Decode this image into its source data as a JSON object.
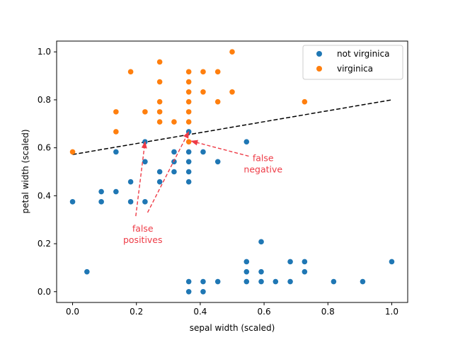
{
  "chart_data": {
    "type": "scatter",
    "xlabel": "sepal width (scaled)",
    "ylabel": "petal width (scaled)",
    "xlim": [
      -0.05,
      1.05
    ],
    "ylim": [
      -0.045,
      1.045
    ],
    "xticks": [
      "0.0",
      "0.2",
      "0.4",
      "0.6",
      "0.8",
      "1.0"
    ],
    "yticks": [
      "0.0",
      "0.2",
      "0.4",
      "0.6",
      "0.8",
      "1.0"
    ],
    "grid": false,
    "legend": {
      "location": "top-right",
      "entries": [
        "not virginica",
        "virginica"
      ]
    },
    "colors": {
      "not_virginica": "#1f77b4",
      "virginica": "#ff7f0e",
      "boundary": "#000000",
      "annotation": "#ee3b46"
    },
    "decision_boundary": {
      "x": [
        0.0,
        1.0
      ],
      "y": [
        0.572,
        0.8
      ],
      "style": "dashed"
    },
    "series": [
      {
        "name": "not virginica",
        "x": [
          0.0,
          0.045,
          0.09,
          0.09,
          0.136,
          0.136,
          0.182,
          0.182,
          0.227,
          0.227,
          0.227,
          0.273,
          0.273,
          0.318,
          0.318,
          0.318,
          0.364,
          0.364,
          0.364,
          0.364,
          0.364,
          0.364,
          0.364,
          0.409,
          0.409,
          0.409,
          0.455,
          0.455,
          0.545,
          0.545,
          0.545,
          0.545,
          0.591,
          0.591,
          0.591,
          0.636,
          0.682,
          0.682,
          0.727,
          0.727,
          0.818,
          0.909,
          1.0
        ],
        "y": [
          0.375,
          0.083,
          0.417,
          0.375,
          0.583,
          0.417,
          0.458,
          0.375,
          0.625,
          0.542,
          0.375,
          0.5,
          0.458,
          0.583,
          0.542,
          0.5,
          0.667,
          0.583,
          0.542,
          0.5,
          0.458,
          0.042,
          0.0,
          0.583,
          0.042,
          0.0,
          0.542,
          0.042,
          0.625,
          0.125,
          0.083,
          0.042,
          0.208,
          0.083,
          0.042,
          0.042,
          0.125,
          0.042,
          0.125,
          0.083,
          0.042,
          0.042,
          0.125
        ]
      },
      {
        "name": "virginica",
        "x": [
          0.0,
          0.136,
          0.136,
          0.182,
          0.227,
          0.273,
          0.273,
          0.273,
          0.273,
          0.273,
          0.318,
          0.364,
          0.364,
          0.364,
          0.364,
          0.364,
          0.364,
          0.364,
          0.409,
          0.409,
          0.455,
          0.455,
          0.5,
          0.5,
          0.727
        ],
        "y": [
          0.583,
          0.75,
          0.667,
          0.917,
          0.75,
          0.958,
          0.875,
          0.792,
          0.75,
          0.708,
          0.708,
          0.917,
          0.875,
          0.833,
          0.792,
          0.75,
          0.708,
          0.625,
          0.917,
          0.833,
          0.917,
          0.792,
          1.0,
          0.833,
          0.792
        ]
      }
    ],
    "annotations": [
      {
        "text_lines": [
          "false",
          "positives"
        ],
        "text_at": [
          0.22,
          0.25
        ],
        "arrows": [
          {
            "from": [
              0.198,
              0.315
            ],
            "to": [
              0.227,
              0.625
            ]
          },
          {
            "from": [
              0.235,
              0.33
            ],
            "to": [
              0.364,
              0.667
            ]
          }
        ]
      },
      {
        "text_lines": [
          "false",
          "negative"
        ],
        "text_at": [
          0.597,
          0.545
        ],
        "arrows": [
          {
            "from": [
              0.552,
              0.565
            ],
            "to": [
              0.372,
              0.628
            ]
          }
        ]
      }
    ]
  }
}
